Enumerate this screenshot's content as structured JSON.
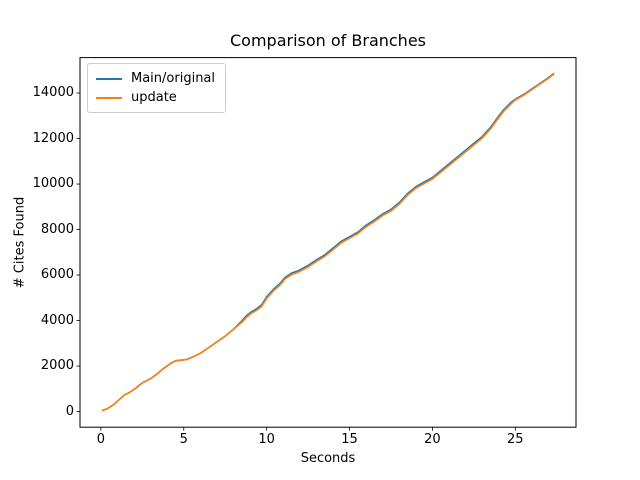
{
  "figure": {
    "title": "Comparison of Branches",
    "xlabel": "Seconds",
    "ylabel": "# Cites Found"
  },
  "legend": {
    "position": "upper left",
    "entries": [
      {
        "label": "Main/original",
        "color": "#1f77b4"
      },
      {
        "label": "update",
        "color": "#ff7f0e"
      }
    ]
  },
  "chart_data": {
    "type": "line",
    "title": "Comparison of Branches",
    "xlabel": "Seconds",
    "ylabel": "# Cites Found",
    "grid": false,
    "legend_position": "upper left",
    "xlim": [
      -1.26,
      28.66
    ],
    "ylim": [
      -688,
      15558
    ],
    "x_ticks": [
      0,
      5,
      10,
      15,
      20,
      25
    ],
    "y_ticks": [
      0,
      2000,
      4000,
      6000,
      8000,
      10000,
      12000,
      14000
    ],
    "x": [
      0.1,
      0.4,
      0.8,
      1.1,
      1.4,
      1.7,
      2.1,
      2.5,
      3.0,
      3.4,
      3.8,
      4.2,
      4.5,
      5.2,
      5.6,
      6.0,
      6.5,
      7.0,
      7.5,
      8.0,
      8.5,
      8.8,
      9.1,
      9.4,
      9.7,
      10.0,
      10.4,
      10.8,
      11.1,
      11.5,
      11.9,
      12.5,
      13.0,
      13.5,
      14.0,
      14.5,
      15.0,
      15.5,
      16.0,
      16.5,
      17.0,
      17.5,
      18.0,
      18.5,
      19.0,
      19.5,
      20.0,
      20.5,
      21.0,
      21.5,
      22.0,
      22.5,
      23.0,
      23.5,
      24.0,
      24.3,
      24.7,
      25.0,
      25.5,
      26.0,
      26.5,
      27.0,
      27.3
    ],
    "series": [
      {
        "name": "Main/original",
        "color": "#1f77b4",
        "values": [
          50,
          130,
          320,
          520,
          720,
          830,
          1020,
          1260,
          1450,
          1660,
          1900,
          2110,
          2230,
          2290,
          2420,
          2560,
          2810,
          3060,
          3310,
          3620,
          3985,
          4225,
          4395,
          4515,
          4695,
          5045,
          5365,
          5625,
          5885,
          6085,
          6185,
          6425,
          6665,
          6885,
          7185,
          7485,
          7685,
          7885,
          8185,
          8425,
          8685,
          8885,
          9185,
          9585,
          9885,
          10085,
          10285,
          10585,
          10885,
          11185,
          11485,
          11785,
          12085,
          12485,
          12985,
          13265,
          13565,
          13730,
          13930,
          14180,
          14430,
          14680,
          14850
        ]
      },
      {
        "name": "update",
        "color": "#ff7f0e",
        "values": [
          50,
          130,
          320,
          520,
          720,
          830,
          1020,
          1260,
          1450,
          1660,
          1900,
          2110,
          2230,
          2290,
          2420,
          2560,
          2810,
          3060,
          3310,
          3620,
          3920,
          4160,
          4330,
          4450,
          4630,
          4980,
          5300,
          5560,
          5820,
          6020,
          6120,
          6360,
          6600,
          6820,
          7120,
          7420,
          7620,
          7820,
          8120,
          8360,
          8620,
          8820,
          9120,
          9520,
          9820,
          10020,
          10220,
          10520,
          10820,
          11120,
          11420,
          11720,
          12020,
          12420,
          12920,
          13200,
          13500,
          13700,
          13900,
          14150,
          14400,
          14650,
          14820
        ]
      }
    ]
  }
}
